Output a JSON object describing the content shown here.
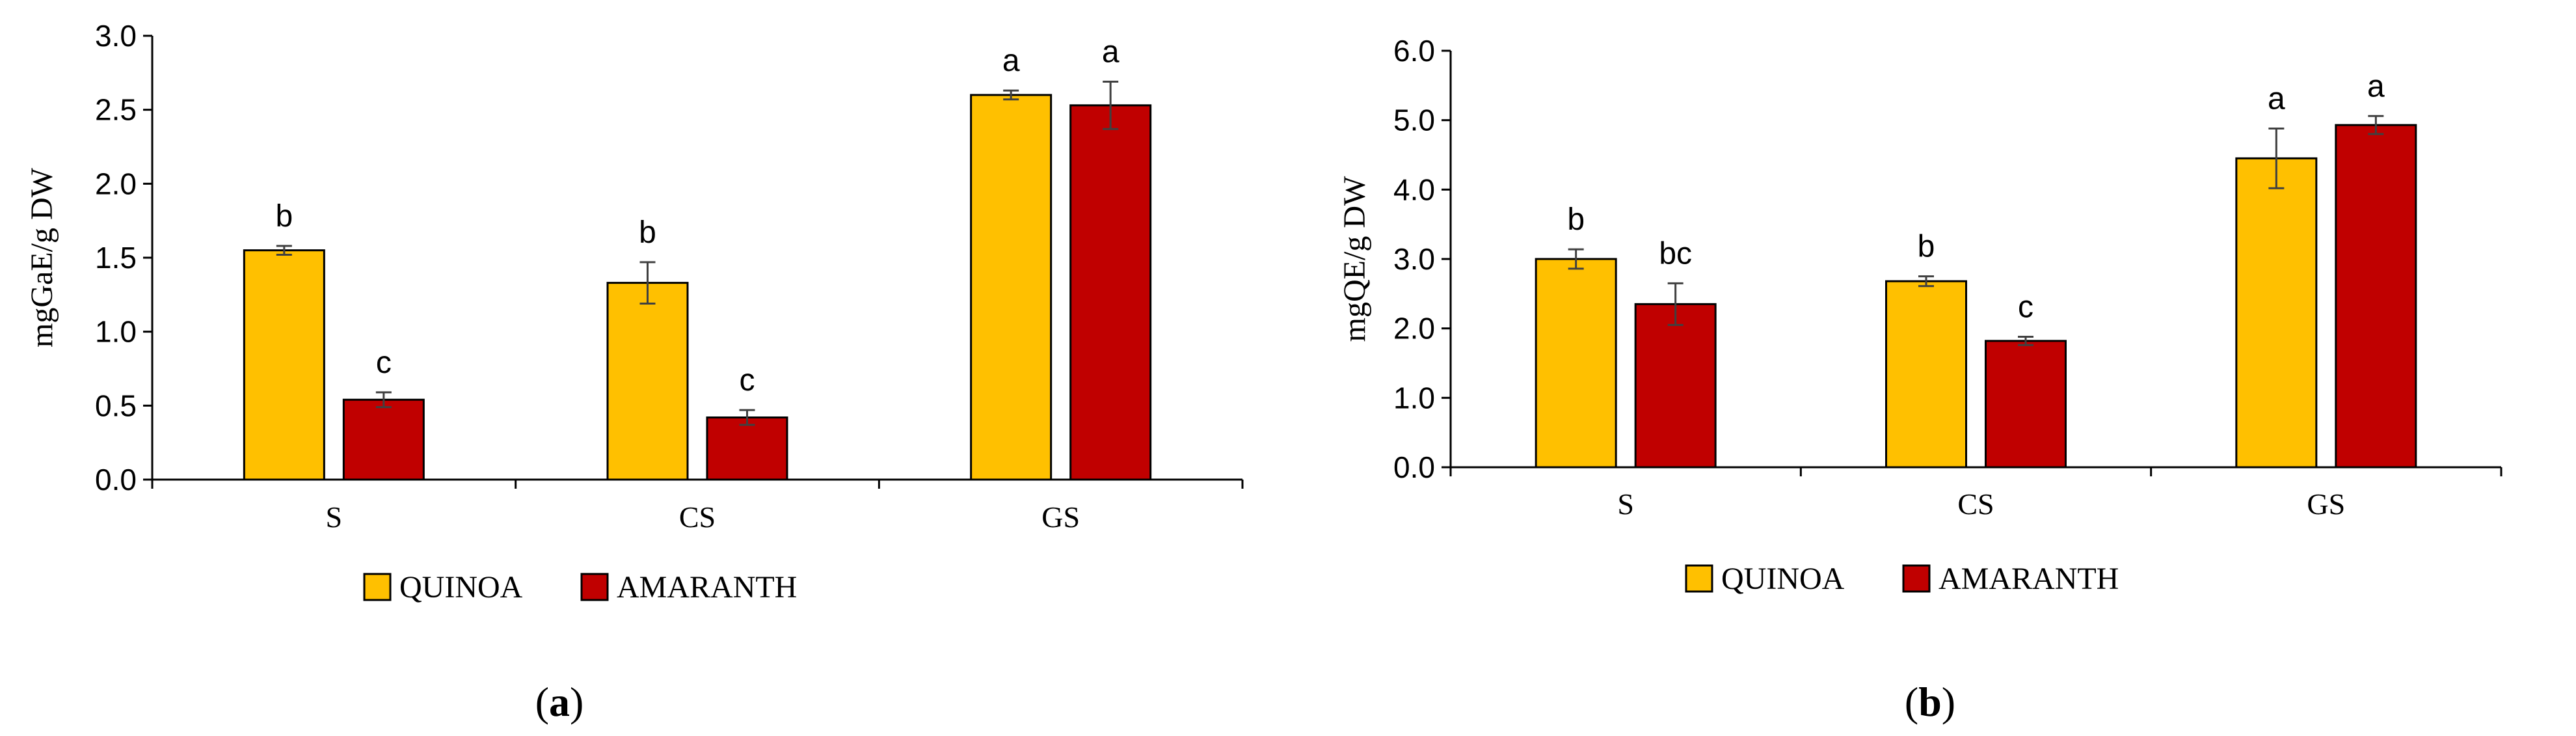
{
  "chart_data": [
    {
      "type": "bar",
      "panel_label": "a",
      "categories": [
        "S",
        "CS",
        "GS"
      ],
      "ylabel": "mgGaE/g DW",
      "ylim": [
        0,
        3.0
      ],
      "yticks": [
        "0.0",
        "0.5",
        "1.0",
        "1.5",
        "2.0",
        "2.5",
        "3.0"
      ],
      "series": [
        {
          "name": "QUINOA",
          "color": "#FFC000",
          "values": [
            1.55,
            1.33,
            2.6
          ],
          "errors": [
            0.03,
            0.14,
            0.03
          ],
          "labels": [
            "b",
            "b",
            "a"
          ]
        },
        {
          "name": "AMARANTH",
          "color": "#C00000",
          "values": [
            0.54,
            0.42,
            2.53
          ],
          "errors": [
            0.05,
            0.05,
            0.16
          ],
          "labels": [
            "c",
            "c",
            "a"
          ]
        }
      ],
      "legend": "bottom",
      "grid": false
    },
    {
      "type": "bar",
      "panel_label": "b",
      "categories": [
        "S",
        "CS",
        "GS"
      ],
      "ylabel": "mgQE/g DW",
      "ylim": [
        0,
        6.0
      ],
      "yticks": [
        "0.0",
        "1.0",
        "2.0",
        "3.0",
        "4.0",
        "5.0",
        "6.0"
      ],
      "series": [
        {
          "name": "QUINOA",
          "color": "#FFC000",
          "values": [
            3.0,
            2.68,
            4.45
          ],
          "errors": [
            0.14,
            0.07,
            0.43
          ],
          "labels": [
            "b",
            "b",
            "a"
          ]
        },
        {
          "name": "AMARANTH",
          "color": "#C00000",
          "values": [
            2.35,
            1.82,
            4.93
          ],
          "errors": [
            0.3,
            0.06,
            0.13
          ],
          "labels": [
            "bc",
            "c",
            "a"
          ]
        }
      ],
      "legend": "bottom",
      "grid": false
    }
  ]
}
